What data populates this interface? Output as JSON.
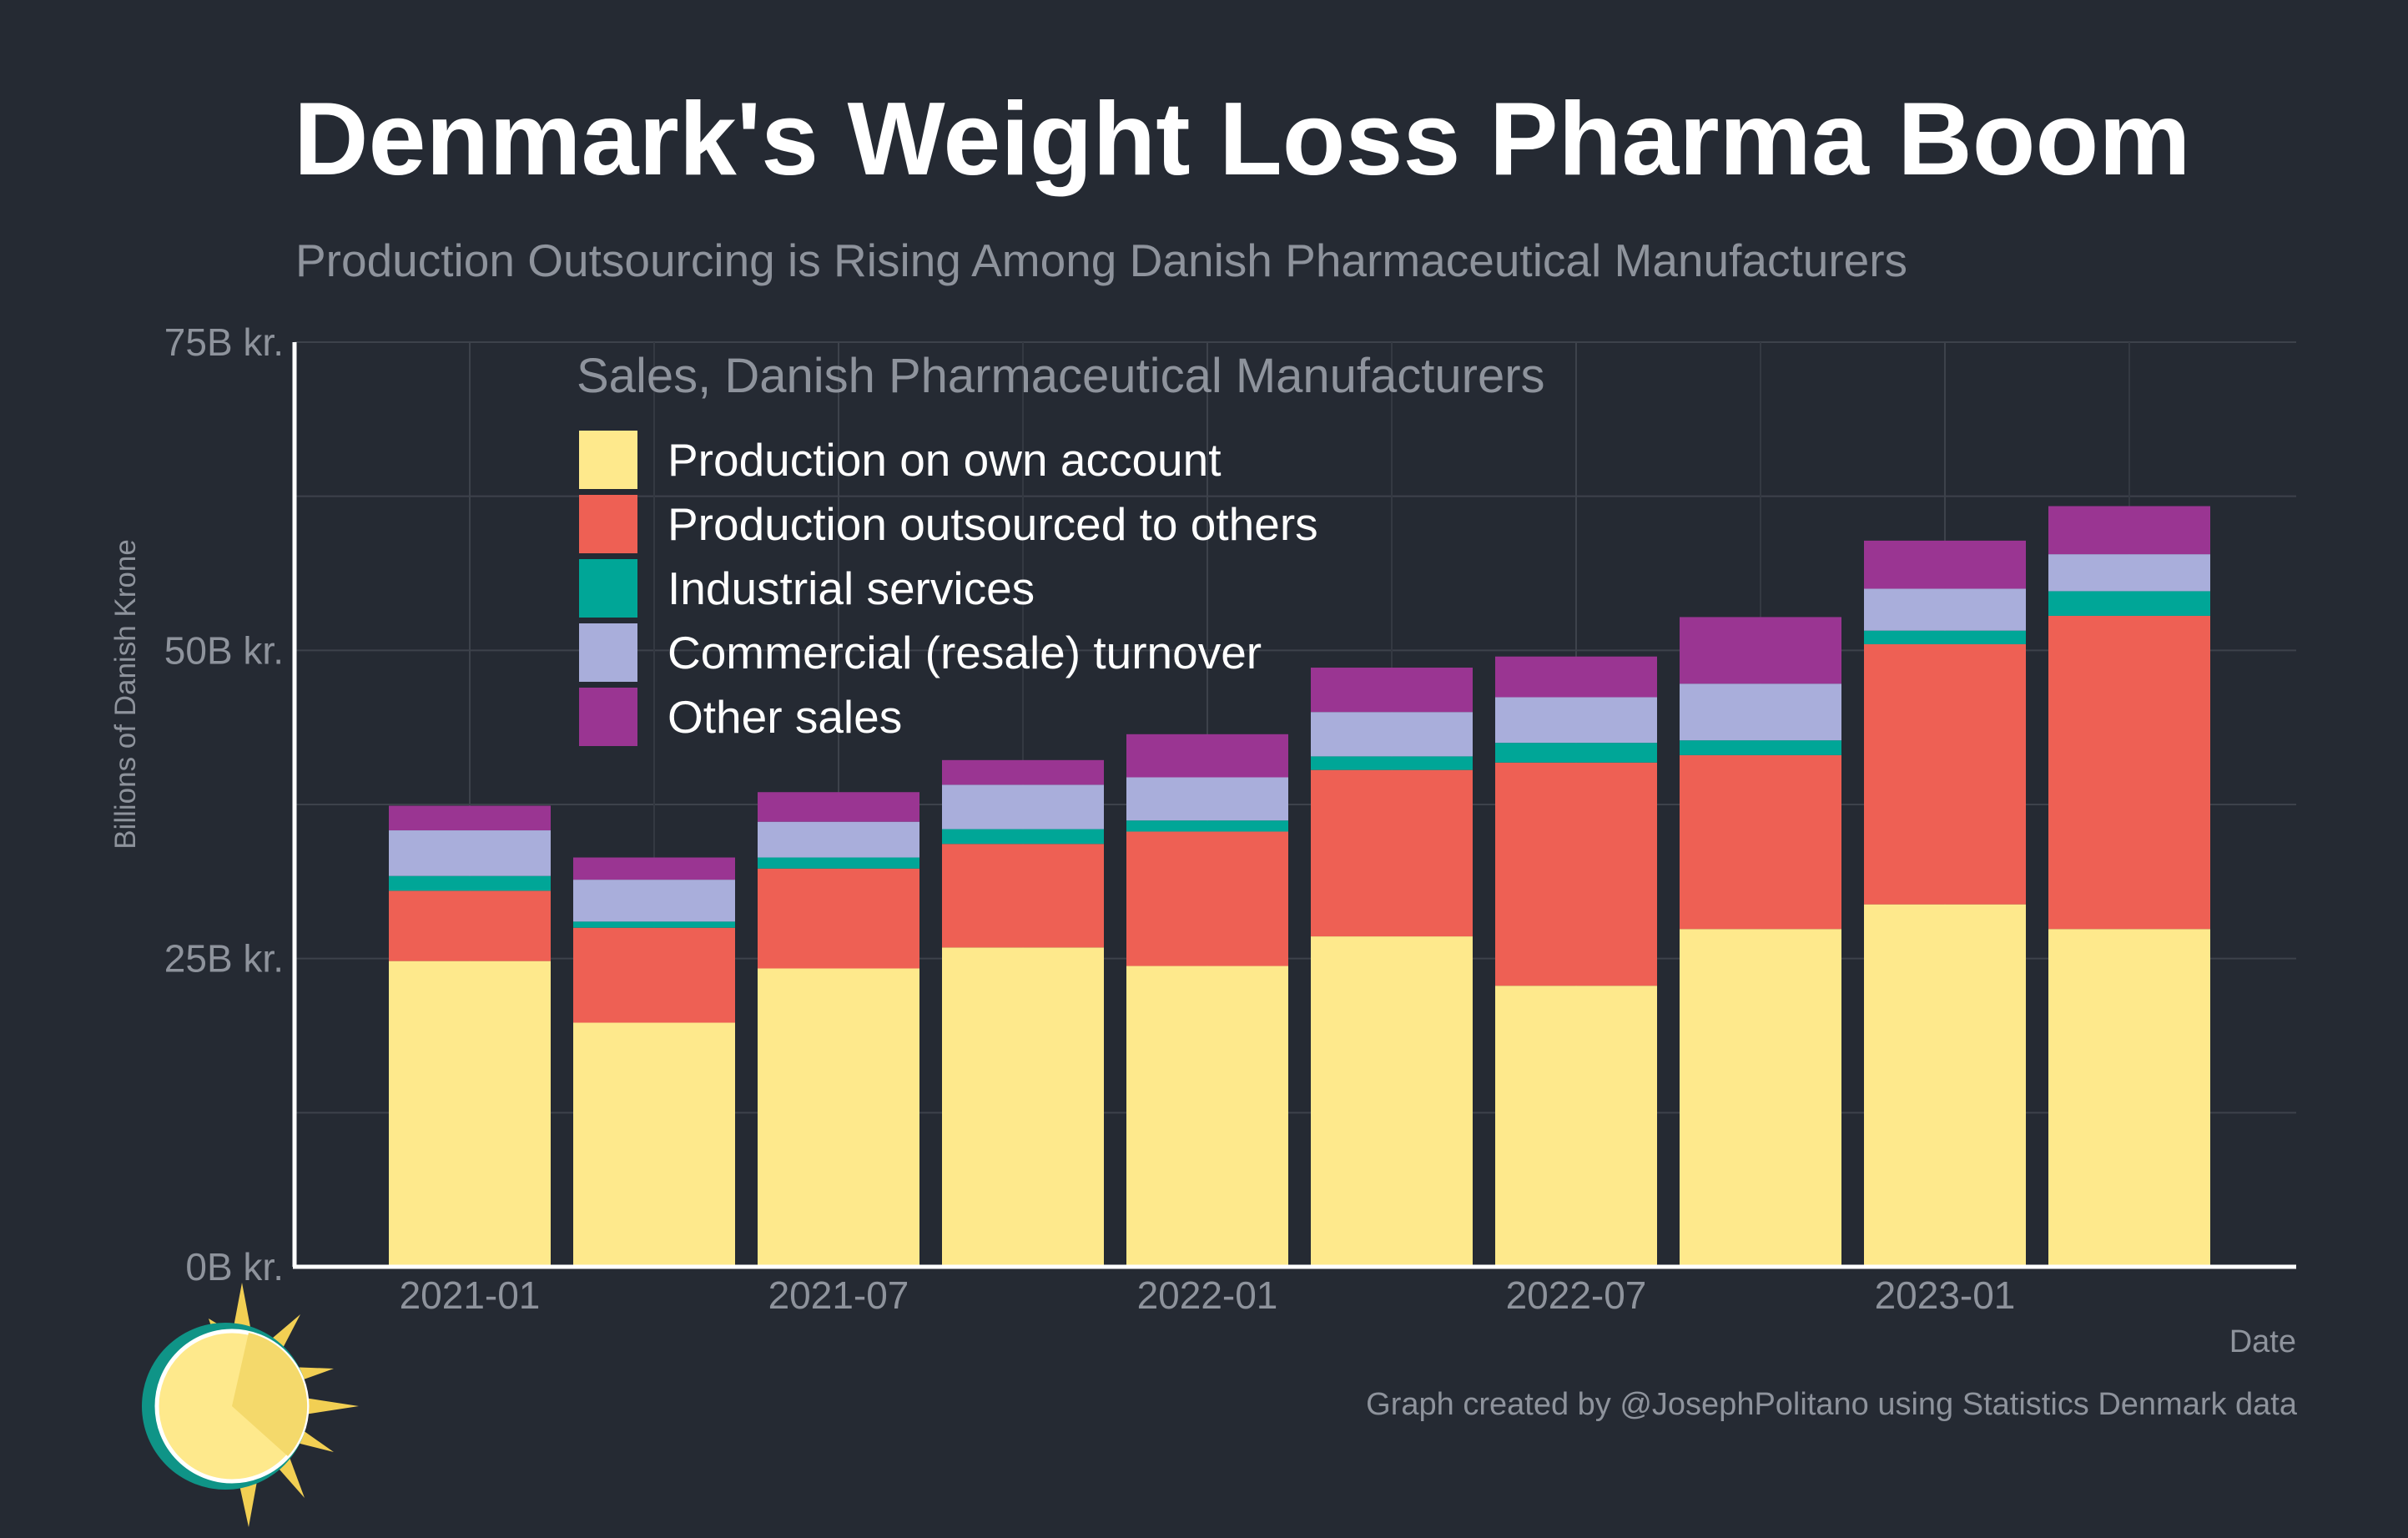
{
  "title": "Denmark's Weight Loss Pharma Boom",
  "subtitle": "Production Outsourcing is Rising Among Danish Pharmaceutical Manufacturers",
  "credit": "Graph created by @JosephPolitano using Statistics Denmark data",
  "chart_data": {
    "type": "bar",
    "stacked": true,
    "ylabel": "Billions of Danish Krone",
    "xlabel": "Date",
    "ylim": [
      0,
      75
    ],
    "yticks": [
      {
        "value": 0,
        "label": "0B kr."
      },
      {
        "value": 25,
        "label": "25B kr."
      },
      {
        "value": 50,
        "label": "50B kr."
      },
      {
        "value": 75,
        "label": "75B kr."
      }
    ],
    "xtick_labels": [
      {
        "index": 0,
        "label": "2021-01"
      },
      {
        "index": 2,
        "label": "2021-07"
      },
      {
        "index": 4,
        "label": "2022-01"
      },
      {
        "index": 6,
        "label": "2022-07"
      },
      {
        "index": 8,
        "label": "2023-01"
      }
    ],
    "categories": [
      "2021-01",
      "2021-04",
      "2021-07",
      "2021-10",
      "2022-01",
      "2022-04",
      "2022-07",
      "2022-10",
      "2023-01",
      "2023-04"
    ],
    "legend_title": "Sales, Danish Pharmaceutical Manufacturers",
    "legend_position": "top-left",
    "grid": true,
    "series": [
      {
        "name": "Production on own account",
        "color": "#fee98c",
        "values": [
          24.8,
          19.8,
          24.2,
          25.9,
          24.4,
          26.8,
          22.8,
          27.4,
          29.4,
          27.4
        ]
      },
      {
        "name": "Production outsourced to others",
        "color": "#ee6054",
        "values": [
          5.7,
          7.7,
          8.1,
          8.4,
          10.9,
          13.5,
          18.1,
          14.1,
          21.1,
          25.4
        ]
      },
      {
        "name": "Industrial services",
        "color": "#00a697",
        "values": [
          1.2,
          0.5,
          0.9,
          1.2,
          0.9,
          1.1,
          1.6,
          1.2,
          1.1,
          2.0
        ]
      },
      {
        "name": "Commercial (resale) turnover",
        "color": "#a9aedb",
        "values": [
          3.7,
          3.4,
          2.9,
          3.6,
          3.5,
          3.6,
          3.7,
          4.6,
          3.4,
          3.0
        ]
      },
      {
        "name": "Other sales",
        "color": "#9a3592",
        "values": [
          2.0,
          1.8,
          2.4,
          2.0,
          3.5,
          3.6,
          3.3,
          5.4,
          3.9,
          3.9
        ]
      }
    ]
  }
}
